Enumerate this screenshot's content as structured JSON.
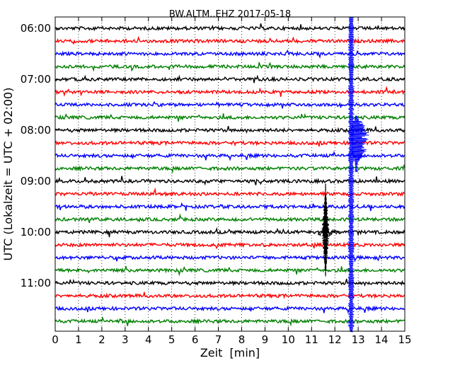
{
  "chart_data": {
    "type": "line",
    "title": "BW.ALTM..EHZ 2017-05-18",
    "xlabel": "Zeit  [min]",
    "ylabel": "UTC (Lokalzeit = UTC + 02:00)",
    "xlim": [
      0,
      15
    ],
    "x_ticks": [
      0,
      1,
      2,
      3,
      4,
      5,
      6,
      7,
      8,
      9,
      10,
      11,
      12,
      13,
      14,
      15
    ],
    "y_tick_labels": [
      "06:00",
      "07:00",
      "08:00",
      "09:00",
      "10:00",
      "11:00"
    ],
    "grid": "vertical-dotted",
    "trace_colors": [
      "#000000",
      "#ff0000",
      "#0000ff",
      "#008000"
    ],
    "rows": [
      "06:00",
      "06:15",
      "06:30",
      "06:45",
      "07:00",
      "07:15",
      "07:30",
      "07:45",
      "08:00",
      "08:15",
      "08:30",
      "08:45",
      "09:00",
      "09:15",
      "09:30",
      "09:45",
      "10:00",
      "10:15",
      "10:30",
      "10:45",
      "11:00",
      "11:15",
      "11:30",
      "11:45"
    ],
    "events": [
      {
        "row_start": "06:00",
        "row_end": "11:45",
        "x_minute": 12.7,
        "color": "#0000ff",
        "note_kind": "vertical-spike"
      },
      {
        "row_start": "08:00",
        "row_end": "08:45",
        "x_minute": 12.9,
        "color": "#0000ff",
        "note_kind": "coda"
      },
      {
        "row_start": "09:15",
        "row_end": "10:30",
        "x_minute": 11.6,
        "color": "#000000",
        "note_kind": "burst"
      }
    ]
  }
}
